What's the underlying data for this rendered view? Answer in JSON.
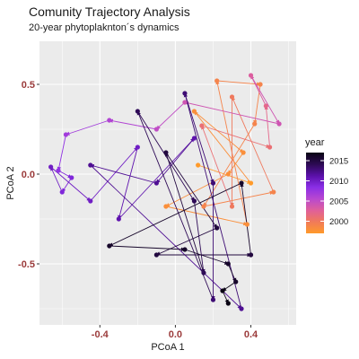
{
  "chart_data": {
    "type": "scatter",
    "title": "Comunity Trajectory Analysis",
    "subtitle": "20-year phytoplaknton´s dynamics",
    "xlabel": "PCoA 1",
    "ylabel": "PCoA 2",
    "xlim": [
      -0.72,
      0.64
    ],
    "ylim": [
      -0.84,
      0.74
    ],
    "x_ticks": [
      -0.4,
      0.0,
      0.4
    ],
    "x_tick_labels": [
      "-0.4",
      "0.0",
      "0.4"
    ],
    "y_ticks": [
      -0.5,
      0.0,
      0.5
    ],
    "y_tick_labels": [
      "-0.5",
      "0.0",
      "0.5"
    ],
    "grid": true,
    "legend": {
      "title": "year",
      "position": "right",
      "type": "colorbar",
      "range": [
        1997,
        2017
      ],
      "tick_values": [
        2000,
        2005,
        2010,
        2015
      ],
      "tick_labels": [
        "2000",
        "2005",
        "2010",
        "2015"
      ],
      "colors": [
        "#ff9a2a",
        "#f07a5a",
        "#e0609a",
        "#b848d0",
        "#8a2ee6",
        "#5a10a8",
        "#2c0a52",
        "#0a0414"
      ]
    },
    "series": [
      {
        "points": [
          {
            "x": 0.22,
            "y": 0.52,
            "year": 1999
          },
          {
            "x": 0.45,
            "y": 0.5,
            "year": 1999
          },
          {
            "x": 0.1,
            "y": 0.35,
            "year": 1998
          },
          {
            "x": 0.3,
            "y": 0.43,
            "year": 2000
          },
          {
            "x": 0.14,
            "y": 0.27,
            "year": 2001
          },
          {
            "x": 0.42,
            "y": 0.28,
            "year": 1999
          },
          {
            "x": 0.48,
            "y": 0.38,
            "year": 2002
          },
          {
            "x": 0.36,
            "y": 0.12,
            "year": 1998
          },
          {
            "x": 0.5,
            "y": 0.15,
            "year": 2001
          },
          {
            "x": 0.12,
            "y": 0.05,
            "year": 1997
          },
          {
            "x": 0.28,
            "y": 0.0,
            "year": 1998
          },
          {
            "x": 0.4,
            "y": -0.05,
            "year": 1997
          },
          {
            "x": -0.05,
            "y": -0.18,
            "year": 1998
          },
          {
            "x": 0.15,
            "y": -0.18,
            "year": 1999
          },
          {
            "x": 0.38,
            "y": -0.28,
            "year": 1998
          },
          {
            "x": 0.52,
            "y": -0.1,
            "year": 1999
          },
          {
            "x": 0.3,
            "y": -0.18,
            "year": 2000
          },
          {
            "x": 0.55,
            "y": 0.28,
            "year": 2004
          },
          {
            "x": 0.4,
            "y": 0.55,
            "year": 2003
          },
          {
            "x": 0.05,
            "y": 0.4,
            "year": 2004
          },
          {
            "x": -0.1,
            "y": 0.25,
            "year": 2005
          },
          {
            "x": -0.35,
            "y": 0.3,
            "year": 2006
          },
          {
            "x": -0.58,
            "y": 0.22,
            "year": 2007
          },
          {
            "x": -0.62,
            "y": 0.02,
            "year": 2008
          },
          {
            "x": -0.55,
            "y": -0.02,
            "year": 2009
          },
          {
            "x": -0.66,
            "y": 0.04,
            "year": 2010
          },
          {
            "x": -0.6,
            "y": -0.1,
            "year": 2009
          },
          {
            "x": -0.45,
            "y": -0.15,
            "year": 2010
          },
          {
            "x": -0.3,
            "y": -0.25,
            "year": 2011
          },
          {
            "x": -0.2,
            "y": 0.15,
            "year": 2010
          },
          {
            "x": 0.1,
            "y": 0.2,
            "year": 2011
          },
          {
            "x": -0.1,
            "y": -0.05,
            "year": 2012
          },
          {
            "x": 0.05,
            "y": 0.45,
            "year": 2013
          },
          {
            "x": -0.45,
            "y": 0.05,
            "year": 2012
          },
          {
            "x": 0.2,
            "y": -0.05,
            "year": 2013
          },
          {
            "x": -0.2,
            "y": 0.35,
            "year": 2014
          },
          {
            "x": 0.1,
            "y": -0.15,
            "year": 2014
          },
          {
            "x": -0.05,
            "y": 0.12,
            "year": 2015
          },
          {
            "x": 0.22,
            "y": -0.3,
            "year": 2015
          },
          {
            "x": 0.35,
            "y": -0.05,
            "year": 2016
          },
          {
            "x": -0.35,
            "y": -0.4,
            "year": 2016
          },
          {
            "x": -0.1,
            "y": -0.45,
            "year": 2015
          },
          {
            "x": 0.05,
            "y": -0.42,
            "year": 2016
          },
          {
            "x": 0.28,
            "y": -0.5,
            "year": 2016
          },
          {
            "x": 0.4,
            "y": -0.45,
            "year": 2015
          },
          {
            "x": 0.15,
            "y": -0.55,
            "year": 2014
          },
          {
            "x": 0.25,
            "y": -0.65,
            "year": 2017
          },
          {
            "x": 0.28,
            "y": -0.72,
            "year": 2017
          },
          {
            "x": 0.32,
            "y": -0.6,
            "year": 2016
          },
          {
            "x": 0.2,
            "y": -0.7,
            "year": 2013
          },
          {
            "x": 0.35,
            "y": -0.75,
            "year": 2012
          }
        ]
      }
    ]
  }
}
